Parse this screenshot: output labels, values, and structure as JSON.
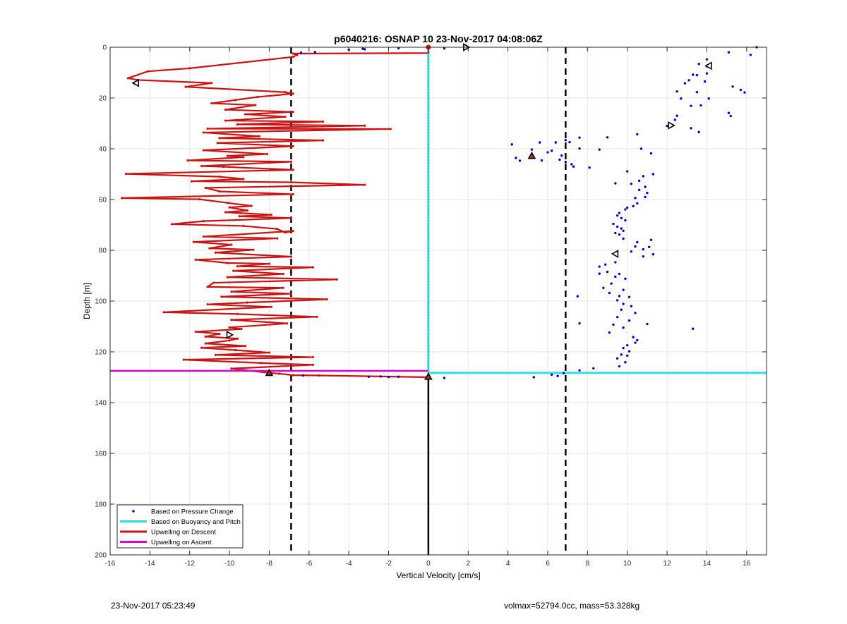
{
  "footer": {
    "timestamp": "23-Nov-2017 05:23:49",
    "params": "volmax=52794.0cc, mass=53.328kg"
  },
  "chart_data": {
    "type": "scatter",
    "title": "p6040216: OSNAP 10 23-Nov-2017 04:08:06Z",
    "xlabel": "Vertical Velocity [cm/s]",
    "ylabel": "Depth [m]",
    "xlim": [
      -16,
      17
    ],
    "ylim": [
      0,
      200
    ],
    "y_reversed": true,
    "grid": true,
    "xticks": [
      -16,
      -14,
      -12,
      -10,
      -8,
      -6,
      -4,
      -2,
      0,
      2,
      4,
      6,
      8,
      10,
      12,
      14,
      16
    ],
    "yticks": [
      0,
      20,
      40,
      60,
      80,
      100,
      120,
      140,
      160,
      180,
      200
    ],
    "legend_position": "bottom-left",
    "legend": [
      {
        "label": "Based on Pressure Change",
        "color": "#0000cc",
        "style": "points"
      },
      {
        "label": "Based on Buoyancy and Pitch",
        "color": "#33dddd",
        "style": "line"
      },
      {
        "label": "Upwelling on Descent",
        "color": "#cc1111",
        "style": "line"
      },
      {
        "label": "Upwelling on Ascent",
        "color": "#dd00dd",
        "style": "line"
      }
    ],
    "reference_lines": {
      "dashed_x": [
        -6.9,
        6.9
      ],
      "solid_x": {
        "x": 0,
        "from_depth": 130,
        "to_depth": 200
      },
      "ascent_depth": 127.5,
      "buoyancy_depth": 128.3
    },
    "series": [
      {
        "name": "Based on Pressure Change",
        "style": "points",
        "color": "#0000cc",
        "points": [
          [
            16.5,
            0
          ],
          [
            16.2,
            3
          ],
          [
            15.1,
            2
          ],
          [
            15.3,
            15.5
          ],
          [
            14.0,
            4.8
          ],
          [
            14.0,
            7.5
          ],
          [
            13.6,
            6.6
          ],
          [
            14.0,
            10.3
          ],
          [
            13.5,
            11
          ],
          [
            13.3,
            10.8
          ],
          [
            13.1,
            13.0
          ],
          [
            12.9,
            14.2
          ],
          [
            13.9,
            13.5
          ],
          [
            12.5,
            17.4
          ],
          [
            13.5,
            17.7
          ],
          [
            14.1,
            20.2
          ],
          [
            12.7,
            20.2
          ],
          [
            15.9,
            17.8
          ],
          [
            15.7,
            16.8
          ],
          [
            13.2,
            23.1
          ],
          [
            13.7,
            22.9
          ],
          [
            15.1,
            25.9
          ],
          [
            15.2,
            27.1
          ],
          [
            12.5,
            27
          ],
          [
            12.4,
            28.6
          ],
          [
            12.0,
            31.0
          ],
          [
            13.2,
            31.9
          ],
          [
            13.6,
            33.4
          ],
          [
            9.0,
            35.5
          ],
          [
            10.5,
            34.3
          ],
          [
            7.6,
            35.6
          ],
          [
            6.4,
            37.5
          ],
          [
            6.9,
            36.6
          ],
          [
            7.1,
            37.4
          ],
          [
            8.6,
            40.3
          ],
          [
            7.6,
            39.9
          ],
          [
            4.2,
            38.3
          ],
          [
            5.6,
            37.5
          ],
          [
            5.2,
            40.3
          ],
          [
            6.2,
            40.8
          ],
          [
            6.0,
            41.4
          ],
          [
            6.7,
            42.7
          ],
          [
            6.6,
            44.3
          ],
          [
            5.2,
            43.5
          ],
          [
            4.4,
            43.6
          ],
          [
            4.6,
            44.7
          ],
          [
            5.7,
            44.6
          ],
          [
            6.9,
            45.2
          ],
          [
            7.2,
            46.1
          ],
          [
            7.3,
            47.0
          ],
          [
            8.1,
            47.4
          ],
          [
            10.7,
            40.0
          ],
          [
            11.2,
            41.8
          ],
          [
            10.0,
            48.9
          ],
          [
            11.3,
            50.0
          ],
          [
            10.8,
            50.8
          ],
          [
            10.6,
            52.6
          ],
          [
            10.2,
            53.8
          ],
          [
            9.4,
            53.6
          ],
          [
            10.9,
            55.0
          ],
          [
            10.6,
            56.2
          ],
          [
            11.0,
            57.4
          ],
          [
            10.9,
            59.0
          ],
          [
            10.4,
            59.4
          ],
          [
            10.5,
            61.5
          ],
          [
            10.3,
            62.6
          ],
          [
            10.0,
            63.2
          ],
          [
            9.9,
            63.9
          ],
          [
            9.6,
            65.3
          ],
          [
            9.5,
            66.3
          ],
          [
            9.7,
            67.3
          ],
          [
            9.9,
            68.2
          ],
          [
            9.3,
            69.6
          ],
          [
            9.5,
            70.7
          ],
          [
            9.7,
            71.4
          ],
          [
            9.8,
            72.3
          ],
          [
            9.4,
            73.2
          ],
          [
            9.6,
            73.8
          ],
          [
            9.8,
            75.4
          ],
          [
            10.5,
            76.8
          ],
          [
            11.2,
            75.9
          ],
          [
            10.4,
            78.5
          ],
          [
            10.8,
            79.6
          ],
          [
            10.2,
            80.5
          ],
          [
            11.1,
            78.7
          ],
          [
            11.3,
            81.6
          ],
          [
            10.8,
            82.4
          ],
          [
            9.4,
            84.7
          ],
          [
            8.9,
            85.6
          ],
          [
            8.6,
            86.4
          ],
          [
            9.0,
            88.5
          ],
          [
            8.6,
            89.2
          ],
          [
            9.6,
            89.3
          ],
          [
            9.4,
            90.4
          ],
          [
            9.9,
            91.2
          ],
          [
            9.2,
            93.1
          ],
          [
            8.8,
            94.8
          ],
          [
            9.8,
            95.6
          ],
          [
            9.1,
            96.8
          ],
          [
            9.6,
            98.0
          ],
          [
            10.1,
            98.4
          ],
          [
            9.5,
            99.7
          ],
          [
            9.8,
            101.1
          ],
          [
            10.2,
            102.0
          ],
          [
            9.7,
            103.4
          ],
          [
            10.4,
            104.7
          ],
          [
            9.5,
            106.3
          ],
          [
            10.1,
            107.7
          ],
          [
            11.0,
            109.0
          ],
          [
            9.3,
            109.3
          ],
          [
            9.8,
            110.5
          ],
          [
            13.3,
            110.9
          ],
          [
            9.1,
            112.4
          ],
          [
            10.3,
            114.2
          ],
          [
            10.5,
            115.4
          ],
          [
            10.4,
            116.4
          ],
          [
            10.0,
            117.4
          ],
          [
            9.8,
            118.5
          ],
          [
            10.1,
            119.8
          ],
          [
            9.7,
            121.1
          ],
          [
            10.0,
            121.5
          ],
          [
            9.5,
            122.6
          ],
          [
            9.9,
            124.1
          ],
          [
            9.6,
            125.7
          ],
          [
            7.5,
            98.1
          ],
          [
            7.6,
            108.8
          ],
          [
            8.3,
            126.5
          ],
          [
            7.6,
            127.3
          ],
          [
            6.8,
            128.4
          ],
          [
            6.2,
            129.0
          ],
          [
            6.5,
            129.5
          ],
          [
            5.3,
            130.0
          ],
          [
            0.8,
            130.3
          ],
          [
            -1.5,
            129.8
          ],
          [
            -2.0,
            129.9
          ],
          [
            -2.4,
            129.7
          ],
          [
            -3.0,
            129.8
          ],
          [
            -6.3,
            129.3
          ],
          [
            -6.4,
            2.1
          ],
          [
            -5.7,
            1.9
          ],
          [
            -4.0,
            1.0
          ],
          [
            -3.3,
            0.6
          ],
          [
            -3.2,
            0.8
          ],
          [
            -1.5,
            0.4
          ],
          [
            0.8,
            0.5
          ]
        ]
      },
      {
        "name": "Based on Buoyancy and Pitch",
        "style": "line",
        "color": "#33dddd",
        "points": [
          [
            0,
            0
          ],
          [
            0,
            128.3
          ]
        ]
      },
      {
        "name": "Upwelling on Descent",
        "style": "line",
        "color": "#cc1111",
        "points": [
          [
            0,
            0
          ],
          [
            0,
            2.3
          ],
          [
            -6.8,
            2.5
          ],
          [
            -6.6,
            3.0
          ],
          [
            -6.8,
            3.8
          ],
          [
            -12.0,
            8.3
          ],
          [
            -14.1,
            9.5
          ],
          [
            -15.1,
            12.2
          ],
          [
            -14.6,
            12.9
          ],
          [
            -10.9,
            14.1
          ],
          [
            -12.2,
            15.6
          ],
          [
            -7.2,
            17.7
          ],
          [
            -6.8,
            18.3
          ],
          [
            -8.6,
            19.6
          ],
          [
            -9.7,
            20.8
          ],
          [
            -10.9,
            22.1
          ],
          [
            -8.7,
            22.8
          ],
          [
            -10.2,
            24.6
          ],
          [
            -6.8,
            25.5
          ],
          [
            -9.2,
            26.4
          ],
          [
            -7.2,
            27.4
          ],
          [
            -10.2,
            28.9
          ],
          [
            -5.3,
            29.3
          ],
          [
            -9.6,
            30.4
          ],
          [
            -3.2,
            30.9
          ],
          [
            -11.1,
            32.1
          ],
          [
            -1.9,
            32.2
          ],
          [
            -11.3,
            33.6
          ],
          [
            -8.5,
            35.1
          ],
          [
            -10.5,
            35.8
          ],
          [
            -5.3,
            36.7
          ],
          [
            -10.6,
            37.7
          ],
          [
            -6.8,
            39.0
          ],
          [
            -11.3,
            40.6
          ],
          [
            -8.1,
            42.1
          ],
          [
            -10.1,
            42.8
          ],
          [
            -9.3,
            43.3
          ],
          [
            -12.1,
            44.6
          ],
          [
            -6.9,
            45.1
          ],
          [
            -11.4,
            46.8
          ],
          [
            -10.3,
            47.1
          ],
          [
            -6.8,
            48.3
          ],
          [
            -15.2,
            49.9
          ],
          [
            -10.5,
            51.0
          ],
          [
            -9.3,
            51.9
          ],
          [
            -11.9,
            52.8
          ],
          [
            -6.9,
            53.2
          ],
          [
            -3.2,
            54.2
          ],
          [
            -11.2,
            55.4
          ],
          [
            -10.5,
            56.8
          ],
          [
            -6.8,
            57.9
          ],
          [
            -15.4,
            59.4
          ],
          [
            -11.5,
            59.9
          ],
          [
            -10.1,
            61.3
          ],
          [
            -8.9,
            62.5
          ],
          [
            -10.0,
            63.1
          ],
          [
            -9.1,
            64.3
          ],
          [
            -10.2,
            65.0
          ],
          [
            -7.9,
            66.0
          ],
          [
            -9.5,
            66.6
          ],
          [
            -6.9,
            67.3
          ],
          [
            -11.3,
            68.5
          ],
          [
            -12.9,
            69.7
          ],
          [
            -9.3,
            70.4
          ],
          [
            -7.6,
            71.6
          ],
          [
            -7.2,
            73.0
          ],
          [
            -6.8,
            72.4
          ],
          [
            -11.3,
            74.6
          ],
          [
            -7.6,
            75.3
          ],
          [
            -11.8,
            76.7
          ],
          [
            -9.9,
            77.8
          ],
          [
            -11.0,
            79.2
          ],
          [
            -8.8,
            79.8
          ],
          [
            -10.7,
            80.9
          ],
          [
            -6.9,
            82.5
          ],
          [
            -11.7,
            83.7
          ],
          [
            -10.1,
            85.0
          ],
          [
            -8.0,
            85.3
          ],
          [
            -9.6,
            86.3
          ],
          [
            -5.8,
            86.7
          ],
          [
            -9.8,
            88.1
          ],
          [
            -7.3,
            89.3
          ],
          [
            -10.1,
            90.6
          ],
          [
            -4.6,
            91.5
          ],
          [
            -10.8,
            92.8
          ],
          [
            -11.1,
            94.4
          ],
          [
            -7.3,
            94.8
          ],
          [
            -9.9,
            96.3
          ],
          [
            -6.9,
            97.1
          ],
          [
            -10.4,
            98.3
          ],
          [
            -5.1,
            99.3
          ],
          [
            -9.1,
            100.6
          ],
          [
            -11.1,
            101.3
          ],
          [
            -7.9,
            102.3
          ],
          [
            -13.3,
            104.4
          ],
          [
            -9.6,
            105.1
          ],
          [
            -5.6,
            106.2
          ],
          [
            -9.9,
            107.4
          ],
          [
            -7.1,
            108.8
          ],
          [
            -10.0,
            110.4
          ],
          [
            -9.4,
            111.0
          ],
          [
            -11.7,
            112.1
          ],
          [
            -10.5,
            112.9
          ],
          [
            -11.2,
            114.0
          ],
          [
            -9.6,
            114.8
          ],
          [
            -10.0,
            115.5
          ],
          [
            -11.2,
            116.7
          ],
          [
            -9.2,
            117.7
          ],
          [
            -11.4,
            118.4
          ],
          [
            -9.7,
            119.3
          ],
          [
            -8.0,
            120.3
          ],
          [
            -10.7,
            121.2
          ],
          [
            -5.8,
            122.1
          ],
          [
            -12.3,
            123.1
          ],
          [
            -8.4,
            124.4
          ],
          [
            -5.8,
            125.1
          ],
          [
            -9.9,
            126.6
          ],
          [
            -8.0,
            128.3
          ],
          [
            -7.5,
            128.6
          ],
          [
            -6.8,
            129.2
          ],
          [
            -5.5,
            129.3
          ],
          [
            0,
            130.0
          ]
        ]
      },
      {
        "name": "Upwelling on Ascent",
        "style": "line",
        "color": "#dd00dd",
        "points": [
          [
            -16,
            127.5
          ],
          [
            0,
            127.5
          ]
        ]
      }
    ],
    "markers": [
      {
        "kind": "triangle-right",
        "fill": "#ffffff",
        "x": 1.9,
        "y": 0.0
      },
      {
        "kind": "triangle-left",
        "fill": "#ffffff",
        "x": 14.1,
        "y": 7.3
      },
      {
        "kind": "triangle-left",
        "fill": "#ffffff",
        "x": -14.7,
        "y": 14.1
      },
      {
        "kind": "triangle-right",
        "fill": "#ffffff",
        "x": 12.2,
        "y": 30.8
      },
      {
        "kind": "triangle-up",
        "fill": "#cc2222",
        "x": 5.2,
        "y": 42.8
      },
      {
        "kind": "triangle-left",
        "fill": "#ffffff",
        "x": 9.4,
        "y": 81.4
      },
      {
        "kind": "triangle-right",
        "fill": "#ffffff",
        "x": -10.0,
        "y": 113.3
      },
      {
        "kind": "triangle-up",
        "fill": "#cc2222",
        "x": -8.0,
        "y": 128.3
      },
      {
        "kind": "triangle-up",
        "fill": "#cc2222",
        "x": 0.0,
        "y": 129.8
      },
      {
        "kind": "dot",
        "fill": "#cc1111",
        "x": 0.0,
        "y": 0.0
      }
    ]
  }
}
